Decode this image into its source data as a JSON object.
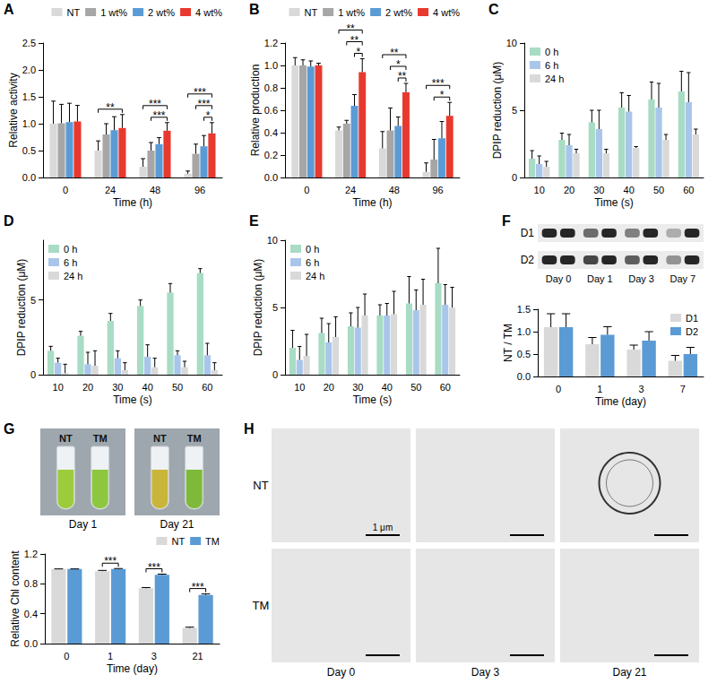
{
  "chart_data": [
    {
      "type": "bar",
      "title": "A",
      "xlabel": "Time (h)",
      "ylabel": "Relative activity",
      "categories": [
        "0",
        "24",
        "48",
        "96"
      ],
      "series": [
        {
          "name": "NT",
          "color": "#d9d9d9",
          "values": [
            1.0,
            0.5,
            0.2,
            0.07
          ],
          "errors": [
            0.42,
            0.18,
            0.15,
            0.05
          ]
        },
        {
          "name": "1 wt%",
          "color": "#a6a6a6",
          "values": [
            1.01,
            0.8,
            0.5,
            0.44
          ],
          "errors": [
            0.35,
            0.2,
            0.15,
            0.18
          ]
        },
        {
          "name": "2 wt%",
          "color": "#5b9bd5",
          "values": [
            1.03,
            0.88,
            0.62,
            0.58
          ],
          "errors": [
            0.35,
            0.25,
            0.12,
            0.2
          ]
        },
        {
          "name": "4 wt%",
          "color": "#e8392f",
          "values": [
            1.04,
            0.92,
            0.87,
            0.82
          ],
          "errors": [
            0.3,
            0.25,
            0.15,
            0.2
          ]
        }
      ],
      "ylim": [
        0,
        2.5
      ],
      "yticks": [
        {
          "value": 0,
          "label": "0.0"
        },
        0.5,
        {
          "value": 1,
          "label": "1.0"
        },
        1.5,
        {
          "value": 2,
          "label": "2.0"
        },
        2.5
      ],
      "grid": false,
      "legend": "top",
      "annotations": [
        {
          "category": "24",
          "from": "NT",
          "to": "4 wt%",
          "text": "**"
        },
        {
          "category": "48",
          "from": "NT",
          "to": "4 wt%",
          "text": "***"
        },
        {
          "category": "48",
          "from": "1 wt%",
          "to": "4 wt%",
          "text": "***"
        },
        {
          "category": "96",
          "from": "NT",
          "to": "4 wt%",
          "text": "***"
        },
        {
          "category": "96",
          "from": "1 wt%",
          "to": "4 wt%",
          "text": "***"
        },
        {
          "category": "96",
          "from": "2 wt%",
          "to": "4 wt%",
          "text": "*"
        }
      ]
    },
    {
      "type": "bar",
      "title": "B",
      "xlabel": "Time (h)",
      "ylabel": "Relative production",
      "categories": [
        "0",
        "24",
        "48",
        "96"
      ],
      "series": [
        {
          "name": "NT",
          "color": "#d9d9d9",
          "values": [
            1.0,
            0.42,
            0.26,
            0.05
          ],
          "errors": [
            0.07,
            0.03,
            0.15,
            0.08
          ]
        },
        {
          "name": "1 wt%",
          "color": "#a6a6a6",
          "values": [
            1.0,
            0.48,
            0.42,
            0.16
          ],
          "errors": [
            0.05,
            0.03,
            0.2,
            0.18
          ]
        },
        {
          "name": "2 wt%",
          "color": "#5b9bd5",
          "values": [
            0.99,
            0.64,
            0.46,
            0.35
          ],
          "errors": [
            0.05,
            0.1,
            0.08,
            0.15
          ]
        },
        {
          "name": "4 wt%",
          "color": "#e8392f",
          "values": [
            1.0,
            0.94,
            0.76,
            0.55
          ],
          "errors": [
            0.02,
            0.12,
            0.08,
            0.12
          ]
        }
      ],
      "ylim": [
        0,
        1.2
      ],
      "yticks": [
        {
          "value": 0,
          "label": "0.0"
        },
        0.2,
        0.4,
        0.6,
        0.8,
        {
          "value": 1,
          "label": "1.0"
        },
        1.2
      ],
      "grid": false,
      "legend": "top",
      "annotations": [
        {
          "category": "24",
          "from": "NT",
          "to": "4 wt%",
          "text": "**"
        },
        {
          "category": "24",
          "from": "1 wt%",
          "to": "4 wt%",
          "text": "**"
        },
        {
          "category": "24",
          "from": "2 wt%",
          "to": "4 wt%",
          "text": "*"
        },
        {
          "category": "48",
          "from": "NT",
          "to": "4 wt%",
          "text": "**"
        },
        {
          "category": "48",
          "from": "1 wt%",
          "to": "4 wt%",
          "text": "*"
        },
        {
          "category": "48",
          "from": "2 wt%",
          "to": "4 wt%",
          "text": "**"
        },
        {
          "category": "96",
          "from": "NT",
          "to": "4 wt%",
          "text": "***"
        },
        {
          "category": "96",
          "from": "1 wt%",
          "to": "4 wt%",
          "text": "*"
        }
      ]
    },
    {
      "type": "bar",
      "title": "C",
      "xlabel": "Time (s)",
      "ylabel": "DPIP reduction (μM)",
      "categories": [
        "10",
        "20",
        "30",
        "40",
        "50",
        "60"
      ],
      "series": [
        {
          "name": "0 h",
          "color": "#a8dcc4",
          "values": [
            1.4,
            2.8,
            4.1,
            5.2,
            5.8,
            6.4
          ],
          "errors": [
            0.6,
            0.5,
            0.9,
            1.1,
            1.3,
            1.5
          ]
        },
        {
          "name": "6 h",
          "color": "#a9c6ea",
          "values": [
            1.0,
            2.4,
            3.6,
            4.9,
            5.2,
            5.6
          ],
          "errors": [
            0.6,
            0.8,
            1.4,
            1.2,
            1.8,
            2.2
          ]
        },
        {
          "name": "24 h",
          "color": "#d9d9d9",
          "values": [
            0.8,
            1.8,
            1.8,
            2.2,
            2.8,
            3.2
          ],
          "errors": [
            0.4,
            0.3,
            0.3,
            0.1,
            0.4,
            0.4
          ]
        }
      ],
      "ylim": [
        0,
        10
      ],
      "yticks": [
        0,
        5,
        10
      ],
      "grid": false,
      "legend": "upper left"
    },
    {
      "type": "bar",
      "title": "D",
      "xlabel": "Time (s)",
      "ylabel": "DPIP reduction (μM)",
      "categories": [
        "10",
        "20",
        "30",
        "40",
        "50",
        "60"
      ],
      "series": [
        {
          "name": "0 h",
          "color": "#a8dcc4",
          "values": [
            1.6,
            2.6,
            3.6,
            4.6,
            5.5,
            6.8
          ],
          "errors": [
            0.3,
            0.3,
            0.5,
            0.4,
            0.6,
            0.3
          ]
        },
        {
          "name": "6 h",
          "color": "#a9c6ea",
          "values": [
            0.8,
            0.7,
            1.1,
            1.2,
            1.3,
            1.3
          ],
          "errors": [
            0.3,
            0.8,
            0.5,
            0.8,
            0.3,
            0.8
          ]
        },
        {
          "name": "24 h",
          "color": "#d9d9d9",
          "values": [
            0.1,
            0.6,
            0.3,
            0.5,
            0.5,
            0.3
          ],
          "errors": [
            0.6,
            1.0,
            0.5,
            0.6,
            0.4,
            0.5
          ]
        }
      ],
      "ylim": [
        0,
        9
      ],
      "yticks": [
        0,
        5
      ],
      "grid": false,
      "legend": "upper left"
    },
    {
      "type": "bar",
      "title": "E",
      "xlabel": "Time (s)",
      "ylabel": "DPIP reduction (μM)",
      "categories": [
        "10",
        "20",
        "30",
        "40",
        "50",
        "60"
      ],
      "series": [
        {
          "name": "0 h",
          "color": "#a8dcc4",
          "values": [
            2.0,
            3.1,
            3.6,
            4.4,
            5.3,
            6.8
          ],
          "errors": [
            1.3,
            1.1,
            1.0,
            0.8,
            2.0,
            2.6
          ]
        },
        {
          "name": "6 h",
          "color": "#a9c6ea",
          "values": [
            1.1,
            2.4,
            3.5,
            4.4,
            4.8,
            5.2
          ],
          "errors": [
            1.0,
            1.4,
            1.5,
            0.9,
            1.5,
            1.5
          ]
        },
        {
          "name": "24 h",
          "color": "#d9d9d9",
          "values": [
            1.4,
            2.8,
            4.4,
            4.5,
            5.2,
            5.0
          ],
          "errors": [
            1.6,
            1.5,
            1.6,
            1.7,
            1.9,
            1.5
          ]
        }
      ],
      "ylim": [
        0,
        10
      ],
      "yticks": [
        0,
        5,
        10
      ],
      "grid": false,
      "legend": "upper left"
    },
    {
      "type": "bar",
      "title": "F",
      "xlabel": "Time (day)",
      "ylabel": "NT / TM",
      "categories": [
        "0",
        "1",
        "3",
        "7"
      ],
      "series": [
        {
          "name": "D1",
          "color": "#d9d9d9",
          "values": [
            1.1,
            0.72,
            0.6,
            0.35
          ],
          "errors": [
            0.3,
            0.15,
            0.1,
            0.12
          ]
        },
        {
          "name": "D2",
          "color": "#5b9bd5",
          "values": [
            1.1,
            0.93,
            0.8,
            0.5
          ],
          "errors": [
            0.3,
            0.18,
            0.2,
            0.15
          ]
        }
      ],
      "ylim": [
        0,
        1.5
      ],
      "yticks": [
        {
          "value": 0,
          "label": "0.0"
        },
        0.5,
        {
          "value": 1,
          "label": "1.0"
        },
        1.5
      ],
      "grid": false,
      "legend": "upper right"
    },
    {
      "type": "bar",
      "title": "G",
      "xlabel": "Time (day)",
      "ylabel": "Relative Chl content",
      "categories": [
        "0",
        "1",
        "3",
        "21"
      ],
      "series": [
        {
          "name": "NT",
          "color": "#d9d9d9",
          "values": [
            1.0,
            0.97,
            0.74,
            0.21
          ],
          "errors": [
            0,
            0.01,
            0.01,
            0.01
          ]
        },
        {
          "name": "TM",
          "color": "#5b9bd5",
          "values": [
            1.0,
            1.0,
            0.92,
            0.65
          ],
          "errors": [
            0,
            0.005,
            0.01,
            0.015
          ]
        }
      ],
      "ylim": [
        0,
        1.2
      ],
      "yticks": [
        {
          "value": 0,
          "label": "0.0"
        },
        0.4,
        0.8,
        1.2
      ],
      "grid": false,
      "legend": "top",
      "annotations": [
        {
          "category": "1",
          "from": "NT",
          "to": "TM",
          "text": "***"
        },
        {
          "category": "3",
          "from": "NT",
          "to": "TM",
          "text": "***"
        },
        {
          "category": "21",
          "from": "NT",
          "to": "TM",
          "text": "***"
        }
      ]
    }
  ],
  "blot": {
    "rows": [
      "D1",
      "D2"
    ],
    "columns": [
      "Day 0",
      "Day 1",
      "Day 3",
      "Day 7"
    ]
  },
  "photos": {
    "panels": [
      {
        "label": "Day 1",
        "tubes": [
          {
            "label": "NT",
            "color": "#9ccc3c"
          },
          {
            "label": "TM",
            "color": "#8dc63f"
          }
        ]
      },
      {
        "label": "Day 21",
        "tubes": [
          {
            "label": "NT",
            "color": "#c9b53a"
          },
          {
            "label": "TM",
            "color": "#7fb93a"
          }
        ]
      }
    ]
  },
  "micrographs": {
    "title": "H",
    "rows": [
      "NT",
      "TM"
    ],
    "columns": [
      "Day 0",
      "Day 3",
      "Day 21"
    ],
    "scale_bar": "1 μm"
  }
}
